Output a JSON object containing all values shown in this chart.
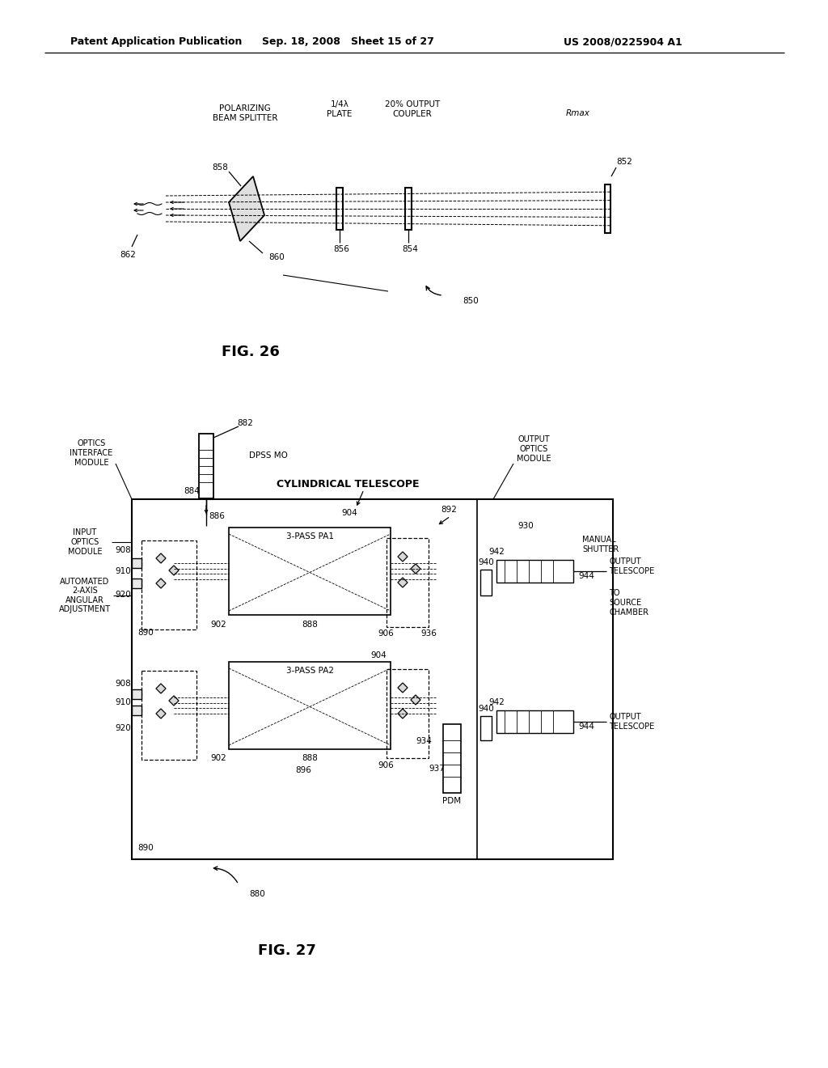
{
  "bg_color": "#ffffff",
  "header_text": "Patent Application Publication",
  "header_date": "Sep. 18, 2008   Sheet 15 of 27",
  "header_patent": "US 2008/0225904 A1",
  "fig26_caption": "FIG. 26",
  "fig27_caption": "FIG. 27",
  "fig26": {
    "label_pbs": "POLARIZING\nBEAM SPLITTER",
    "label_qwp": "1/4λ\nPLATE",
    "label_oc": "20% OUTPUT\nCOUPLER",
    "label_rmax": "Rmax",
    "n858": "858",
    "n860": "860",
    "n862": "862",
    "n856": "856",
    "n854": "854",
    "n852": "852",
    "n850": "850"
  },
  "fig27": {
    "optics_interface_module": "OPTICS\nINTERFACE\nMODULE",
    "dpss_mo": "DPSS MO",
    "cylindrical_telescope": "CYLINDRICAL TELESCOPE",
    "output_optics_module": "OUTPUT\nOPTICS\nMODULE",
    "input_optics_module": "INPUT\nOPTICS\nMODULE",
    "three_pass_pa1": "3-PASS PA1",
    "three_pass_pa2": "3-PASS PA2",
    "automated": "AUTOMATED\n2-AXIS\nANGULAR\nADJUSTMENT",
    "manual_shutter": "MANUAL\nSHUTTER",
    "output_telescope": "OUTPUT\nTELESCOPE",
    "to_source_chamber": "TO\nSOURCE\nCHAMBER",
    "output_telescope2": "OUTPUT\nTELESCOPE",
    "pdm": "PDM",
    "n880": "880",
    "n882": "882",
    "n884": "884",
    "n886": "886",
    "n888": "888",
    "n890": "890",
    "n892": "892",
    "n896": "896",
    "n902": "902",
    "n904": "904",
    "n906": "906",
    "n908": "908",
    "n910": "910",
    "n920": "920",
    "n930": "930",
    "n934": "934",
    "n936": "936",
    "n937": "937",
    "n940": "940",
    "n942": "942",
    "n944": "944"
  }
}
